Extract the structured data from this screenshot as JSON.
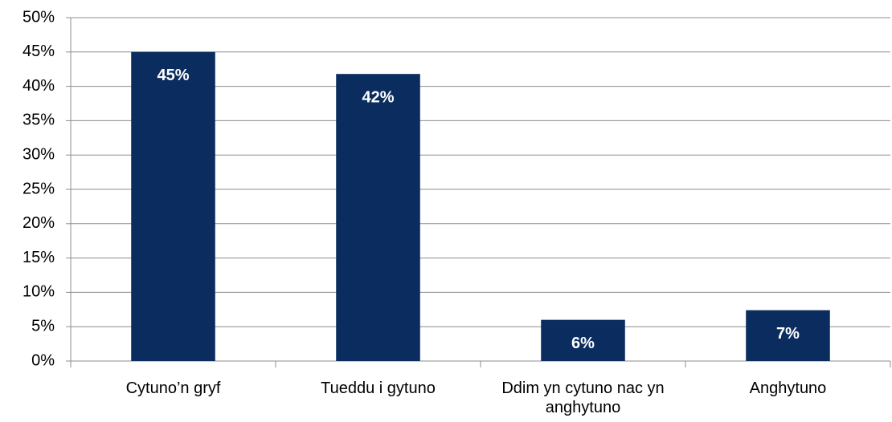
{
  "chart_data": {
    "type": "bar",
    "categories": [
      "Cytuno’n gryf",
      "Tueddu i gytuno",
      "Ddim yn cytuno nac yn anghytuno",
      "Anghytuno"
    ],
    "values": [
      45,
      41.8,
      6,
      7.4
    ],
    "value_labels": [
      "45%",
      "42%",
      "6%",
      "7%"
    ],
    "color": "#0b2c5f",
    "ylim": [
      0,
      50
    ],
    "yticks": [
      {
        "value": 0,
        "label": "0%"
      },
      {
        "value": 5,
        "label": "5%"
      },
      {
        "value": 10,
        "label": "10%"
      },
      {
        "value": 15,
        "label": "15%"
      },
      {
        "value": 20,
        "label": "20%"
      },
      {
        "value": 25,
        "label": "25%"
      },
      {
        "value": 30,
        "label": "30%"
      },
      {
        "value": 35,
        "label": "35%"
      },
      {
        "value": 40,
        "label": "40%"
      },
      {
        "value": 45,
        "label": "45%"
      },
      {
        "value": 50,
        "label": "50%"
      }
    ],
    "grid": true
  }
}
